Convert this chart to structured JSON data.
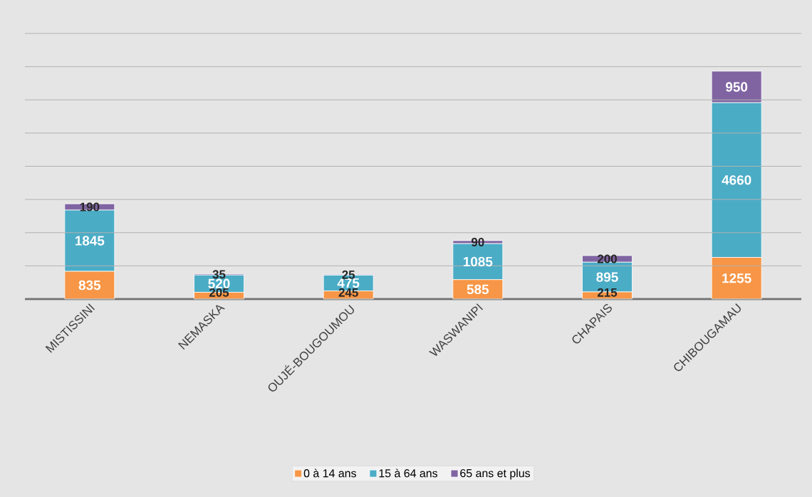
{
  "chart_data": {
    "type": "bar",
    "stacked": true,
    "categories": [
      "MISTISSINI",
      "NEMASKA",
      "OUJÉ-BOUGOUMOU",
      "WASWANIPI",
      "CHAPAIS",
      "CHIBOUGAMAU"
    ],
    "series": [
      {
        "name": "0 à 14 ans",
        "color": "#f79646",
        "values": [
          835,
          205,
          245,
          585,
          215,
          1255
        ]
      },
      {
        "name": "15 à 64 ans",
        "color": "#4bacc6",
        "values": [
          1845,
          520,
          475,
          1085,
          895,
          4660
        ]
      },
      {
        "name": "65 ans et plus",
        "color": "#8064a2",
        "values": [
          190,
          35,
          25,
          90,
          200,
          950
        ]
      }
    ],
    "ylim": [
      0,
      8000
    ],
    "yticks": [
      {
        "value": 0,
        "label": null
      },
      {
        "value": 1000,
        "label": null
      },
      {
        "value": 2000,
        "label": null
      },
      {
        "value": 3000,
        "label": null
      },
      {
        "value": 4000,
        "label": null
      },
      {
        "value": 5000,
        "label": null
      },
      {
        "value": 6000,
        "label": null
      },
      {
        "value": 7000,
        "label": null
      },
      {
        "value": 8000,
        "label": null
      }
    ],
    "tick_labels": "x",
    "grid": "y",
    "legend": "bottom",
    "data_labels": true
  }
}
